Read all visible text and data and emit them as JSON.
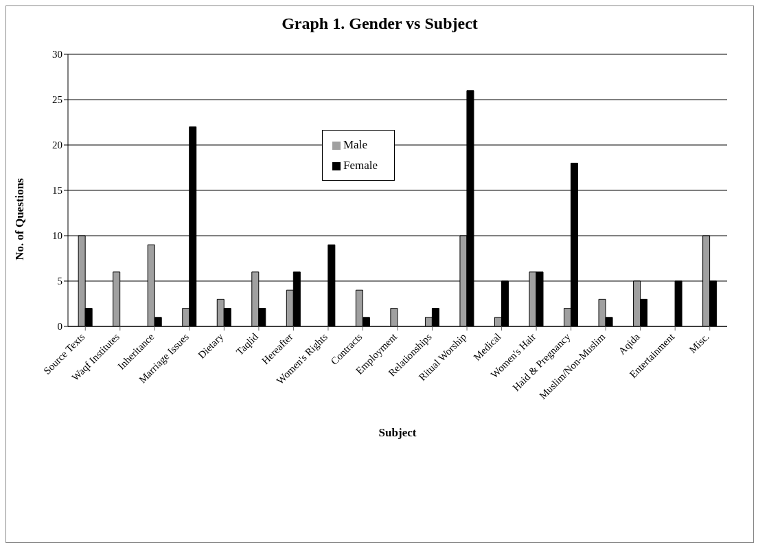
{
  "chart_data": {
    "type": "bar",
    "title": "Graph 1. Gender vs Subject",
    "xlabel": "Subject",
    "ylabel": "No. of Questions",
    "categories": [
      "Source Texts",
      "Waqf Institutes",
      "Inheritance",
      "Marriage Issues",
      "Dietary",
      "Taqlid",
      "Hereafter",
      "Women's Rights",
      "Contracts",
      "Employment",
      "Relationships",
      "Ritual Worship",
      "Medical",
      "Women's Hair",
      "Haid & Pregnancy",
      "Muslim/Non-Muslim",
      "Aqida",
      "Entertainment",
      "Misc."
    ],
    "series": [
      {
        "name": "Male",
        "color": "#a0a0a0",
        "values": [
          10,
          6,
          9,
          2,
          3,
          6,
          4,
          0,
          4,
          2,
          1,
          10,
          1,
          6,
          2,
          3,
          5,
          0,
          10
        ]
      },
      {
        "name": "Female",
        "color": "#000000",
        "values": [
          2,
          0,
          1,
          22,
          2,
          2,
          6,
          9,
          1,
          0,
          2,
          26,
          5,
          6,
          18,
          1,
          3,
          5,
          5
        ]
      }
    ],
    "ylim": [
      0,
      30
    ],
    "yticks": [
      0,
      5,
      10,
      15,
      20,
      25,
      30
    ],
    "grid": "y",
    "legend": "top"
  }
}
